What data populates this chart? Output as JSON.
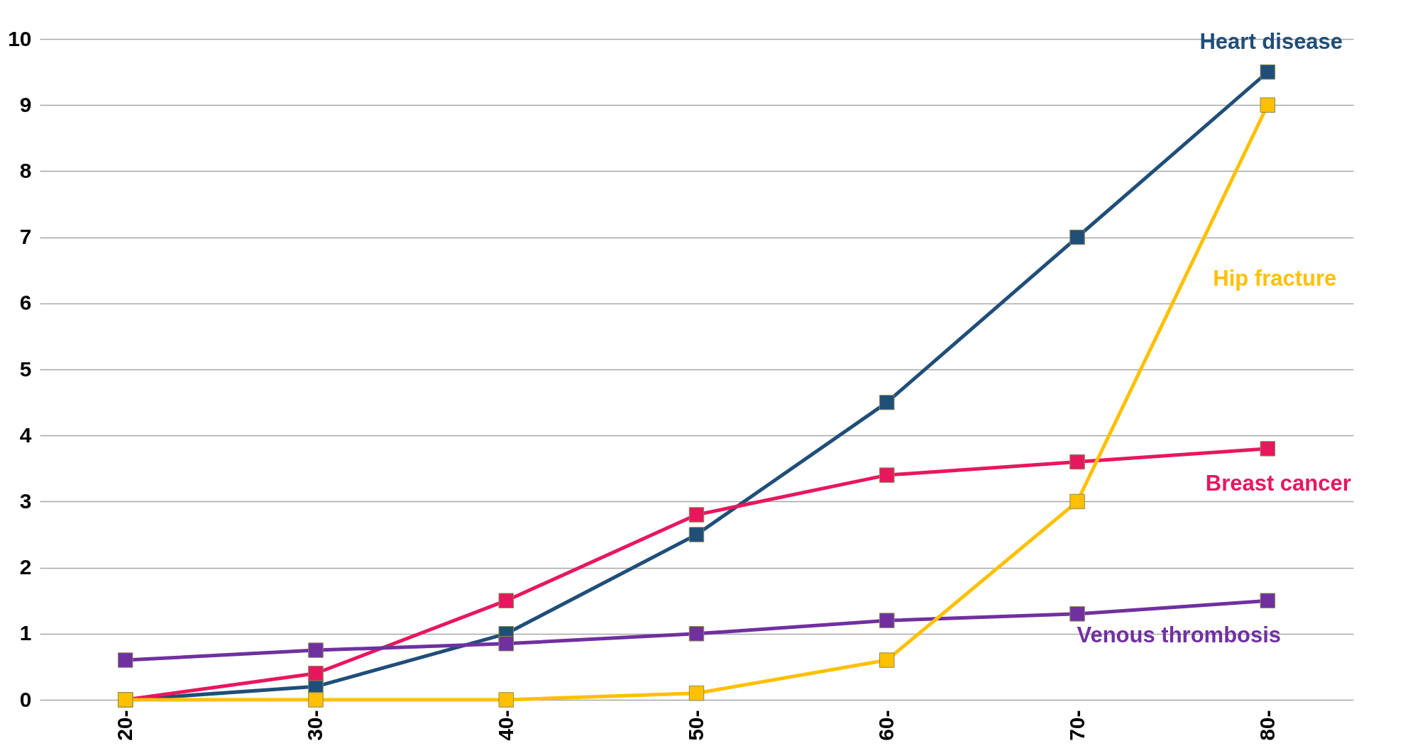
{
  "chart_data": {
    "type": "line",
    "categories": [
      "20-",
      "30-",
      "40-",
      "50-",
      "60-",
      "70-",
      "80-"
    ],
    "series": [
      {
        "name": "Heart disease",
        "color": "#1f4e79",
        "values": [
          0,
          0.2,
          1.0,
          2.5,
          4.5,
          7.0,
          9.5
        ]
      },
      {
        "name": "Breast cancer",
        "color": "#e8175d",
        "values": [
          0,
          0.4,
          1.5,
          2.8,
          3.4,
          3.6,
          3.8
        ]
      },
      {
        "name": "Venous thrombosis",
        "color": "#7030a0",
        "values": [
          0.6,
          0.75,
          0.85,
          1.0,
          1.2,
          1.3,
          1.5
        ]
      },
      {
        "name": "Hip fracture",
        "color": "#ffc000",
        "values": [
          0,
          0,
          0,
          0.1,
          0.6,
          3.0,
          9.0
        ]
      }
    ],
    "ylim": [
      0,
      10
    ],
    "yticks": [
      0,
      1,
      2,
      3,
      4,
      5,
      6,
      7,
      8,
      9,
      10
    ],
    "grid": "y",
    "marker": "square",
    "legend": false
  }
}
